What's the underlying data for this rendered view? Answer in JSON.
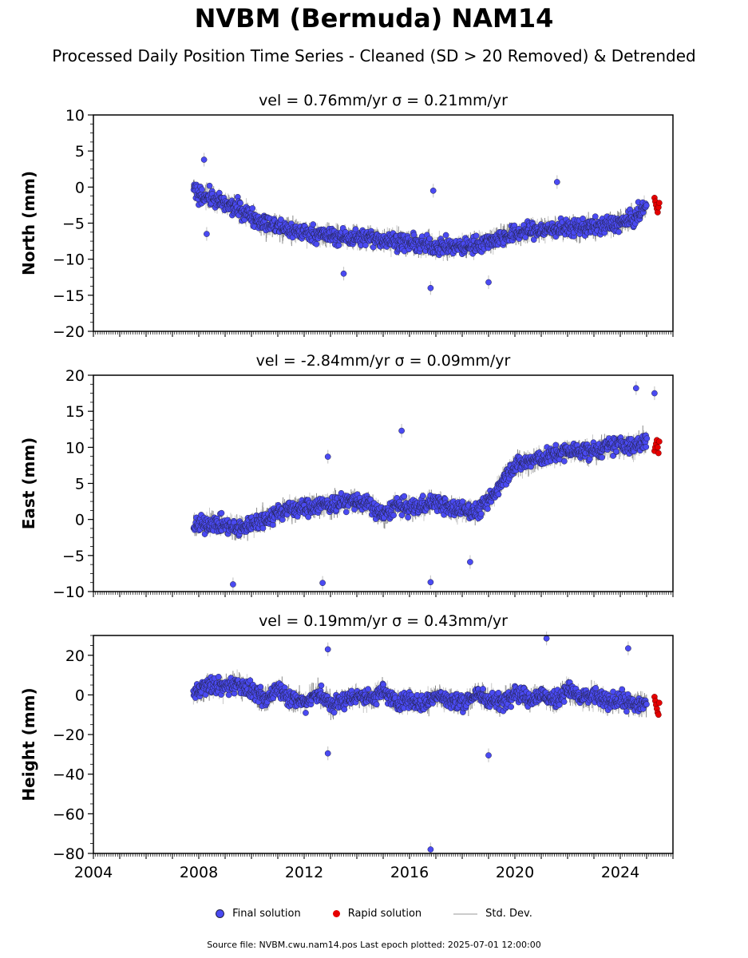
{
  "title": "NVBM (Bermuda) NAM14",
  "subtitle": "Processed Daily Position Time Series - Cleaned (SD > 20 Removed) & Detrended",
  "colors": {
    "final": "#4a4af2",
    "rapid": "#e60000",
    "stddev": "#c8c8c8",
    "edge": "#222244"
  },
  "legend": {
    "final": "Final solution",
    "rapid": "Rapid solution",
    "stddev": "Std. Dev."
  },
  "footer": "Source file: NVBM.cwu.nam14.pos  Last epoch plotted: 2025-07-01 12:00:00",
  "chart_data": [
    {
      "type": "scatter",
      "component": "north",
      "panel_title": "vel = 0.76mm/yr   σ = 0.21mm/yr",
      "ylabel": "North (mm)",
      "xlim": [
        2004.0,
        2026.0
      ],
      "ylim": [
        -20,
        10
      ],
      "yticks": [
        -20,
        -15,
        -10,
        -5,
        0,
        5,
        10
      ],
      "xticks": [
        2004,
        2008,
        2012,
        2016,
        2020,
        2024
      ],
      "x": [
        2007.8,
        2008.0,
        2008.5,
        2009.0,
        2009.5,
        2010.0,
        2010.5,
        2011.0,
        2011.5,
        2012.0,
        2012.5,
        2013.0,
        2013.5,
        2014.0,
        2014.5,
        2015.0,
        2015.5,
        2016.0,
        2016.5,
        2017.0,
        2017.5,
        2018.0,
        2018.5,
        2019.0,
        2019.5,
        2020.0,
        2020.5,
        2021.0,
        2021.5,
        2022.0,
        2022.5,
        2023.0,
        2023.5,
        2024.0,
        2024.5,
        2025.0
      ],
      "y": [
        -0.5,
        -1.0,
        -1.5,
        -2.5,
        -3.0,
        -4.0,
        -5.0,
        -5.5,
        -6.0,
        -6.3,
        -6.5,
        -6.8,
        -7.0,
        -7.0,
        -7.0,
        -7.3,
        -7.5,
        -7.8,
        -8.0,
        -8.2,
        -8.3,
        -8.3,
        -8.0,
        -7.5,
        -7.0,
        -6.5,
        -6.0,
        -6.0,
        -5.8,
        -5.7,
        -5.5,
        -5.5,
        -5.3,
        -5.0,
        -4.5,
        -2.5
      ],
      "rapid_x": [
        2025.3,
        2025.33,
        2025.36,
        2025.39,
        2025.42,
        2025.45,
        2025.48
      ],
      "rapid_y": [
        -1.5,
        -2.0,
        -2.5,
        -3.0,
        -3.5,
        -2.8,
        -2.2
      ],
      "outliers_x": [
        2008.2,
        2008.3,
        2021.6,
        2016.8,
        2016.9,
        2019.0,
        2013.5
      ],
      "outliers_y": [
        3.8,
        -6.5,
        0.7,
        -14.0,
        -0.5,
        -13.2,
        -12.0
      ]
    },
    {
      "type": "scatter",
      "component": "east",
      "panel_title": "vel = -2.84mm/yr   σ = 0.09mm/yr",
      "ylabel": "East (mm)",
      "xlim": [
        2004.0,
        2026.0
      ],
      "ylim": [
        -10,
        20
      ],
      "yticks": [
        -10,
        -5,
        0,
        5,
        10,
        15,
        20
      ],
      "xticks": [
        2004,
        2008,
        2012,
        2016,
        2020,
        2024
      ],
      "x": [
        2007.8,
        2008.0,
        2008.5,
        2009.0,
        2009.5,
        2010.0,
        2010.5,
        2011.0,
        2011.5,
        2012.0,
        2012.5,
        2013.0,
        2013.5,
        2014.0,
        2014.5,
        2015.0,
        2015.5,
        2016.0,
        2016.5,
        2017.0,
        2017.5,
        2018.0,
        2018.5,
        2019.0,
        2019.3,
        2019.6,
        2020.0,
        2020.5,
        2021.0,
        2021.5,
        2022.0,
        2022.5,
        2023.0,
        2023.5,
        2024.0,
        2024.5,
        2025.0
      ],
      "y": [
        -1.0,
        -0.8,
        -0.5,
        -0.8,
        -1.5,
        -0.5,
        0.0,
        1.0,
        1.5,
        1.5,
        2.0,
        2.0,
        2.5,
        2.5,
        2.0,
        0.5,
        2.0,
        1.5,
        2.0,
        2.5,
        1.5,
        1.5,
        1.0,
        2.5,
        4.0,
        6.0,
        7.5,
        8.0,
        8.5,
        9.0,
        9.5,
        9.5,
        9.5,
        10.0,
        10.5,
        10.0,
        11.0
      ],
      "rapid_x": [
        2025.3,
        2025.33,
        2025.36,
        2025.39,
        2025.42,
        2025.45,
        2025.48
      ],
      "rapid_y": [
        9.5,
        10.0,
        10.5,
        11.0,
        10.0,
        9.2,
        10.8
      ],
      "outliers_x": [
        2015.7,
        2024.6,
        2025.3,
        2012.9,
        2009.3,
        2012.7,
        2016.8,
        2018.3
      ],
      "outliers_y": [
        12.3,
        18.2,
        17.5,
        8.7,
        -9.0,
        -8.8,
        -8.7,
        -5.9
      ]
    },
    {
      "type": "scatter",
      "component": "height",
      "panel_title": "vel = 0.19mm/yr   σ = 0.43mm/yr",
      "ylabel": "Height (mm)",
      "xlim": [
        2004.0,
        2026.0
      ],
      "ylim": [
        -80,
        30
      ],
      "yticks": [
        -80,
        -60,
        -40,
        -20,
        0,
        20
      ],
      "xticks": [
        2004,
        2008,
        2012,
        2016,
        2020,
        2024
      ],
      "x": [
        2007.8,
        2008.0,
        2008.5,
        2009.0,
        2009.5,
        2010.0,
        2010.5,
        2011.0,
        2011.5,
        2012.0,
        2012.5,
        2013.0,
        2013.5,
        2014.0,
        2014.5,
        2015.0,
        2015.5,
        2016.0,
        2016.5,
        2017.0,
        2017.5,
        2018.0,
        2018.5,
        2019.0,
        2019.5,
        2020.0,
        2020.5,
        2021.0,
        2021.5,
        2022.0,
        2022.5,
        2023.0,
        2023.5,
        2024.0,
        2024.5,
        2025.0
      ],
      "y": [
        0.0,
        3.0,
        5.0,
        4.0,
        6.0,
        2.0,
        -3.0,
        4.0,
        -2.0,
        -4.0,
        1.0,
        -5.0,
        -3.0,
        0.0,
        -2.0,
        2.0,
        -4.0,
        -2.0,
        -5.0,
        0.0,
        -3.0,
        -4.0,
        0.0,
        -2.0,
        -4.0,
        2.0,
        -2.0,
        0.0,
        -3.0,
        3.0,
        -2.0,
        0.0,
        -4.0,
        -2.0,
        -5.0,
        -4.0
      ],
      "rapid_x": [
        2025.3,
        2025.33,
        2025.36,
        2025.39,
        2025.42,
        2025.45,
        2025.48
      ],
      "rapid_y": [
        -1.0,
        -3.0,
        -5.0,
        -7.0,
        -9.0,
        -10.0,
        -4.0
      ],
      "outliers_x": [
        2016.8,
        2012.9,
        2019.0,
        2021.2,
        2012.9,
        2024.3
      ],
      "outliers_y": [
        -78.0,
        -29.5,
        -30.5,
        28.5,
        23.0,
        23.5
      ]
    }
  ]
}
